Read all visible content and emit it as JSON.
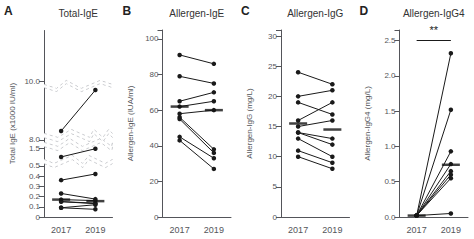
{
  "chart_data": [
    {
      "type": "line",
      "title": "Total-IgE",
      "ylabel": "Total IgE (x1000 IU/ml)",
      "annotations": [
        {
          "text": "A"
        }
      ],
      "categories": [
        "2017",
        "2019"
      ],
      "ylim": [
        0,
        10.5
      ],
      "yticks": [
        0,
        0.1,
        0.2,
        0.3,
        0.4,
        0.5,
        1.5,
        {
          "value": 8,
          "label": "8.0"
        },
        {
          "value": 10,
          "label": "10.0"
        }
      ],
      "grid": false,
      "color": "#1a1a1a",
      "marker": "circle",
      "series": [
        {
          "values": [
            8.5,
            8.9
          ]
        },
        {
          "values": [
            1.42,
            1.5
          ]
        },
        {
          "values": [
            0.36,
            0.42
          ]
        },
        {
          "values": [
            0.23,
            0.175
          ]
        },
        {
          "values": [
            0.17,
            0.16
          ]
        },
        {
          "values": [
            0.15,
            0.135
          ]
        },
        {
          "values": [
            0.15,
            0.13
          ]
        },
        {
          "values": [
            0.09,
            0.12
          ]
        },
        {
          "values": [
            0.09,
            0.075
          ]
        },
        {
          "type": "median",
          "color": "#111111",
          "values": [
            0.17,
            0.155
          ]
        }
      ]
    },
    {
      "type": "line",
      "title": "Allergen-IgE",
      "ylabel": "Allergen-IgE (IUA/ml)",
      "annotations": [
        {
          "text": "B"
        }
      ],
      "categories": [
        "2017",
        "2019"
      ],
      "ylim": [
        0,
        105
      ],
      "yticks": [
        0,
        20,
        40,
        60,
        80,
        100
      ],
      "grid": false,
      "color": "#1a1a1a",
      "marker": "circle",
      "series": [
        {
          "values": [
            91,
            86
          ]
        },
        {
          "values": [
            79,
            75
          ]
        },
        {
          "values": [
            65,
            70
          ]
        },
        {
          "values": [
            62,
            65
          ]
        },
        {
          "values": [
            58,
            60
          ]
        },
        {
          "values": [
            56,
            38
          ]
        },
        {
          "values": [
            55,
            36
          ]
        },
        {
          "values": [
            45,
            33
          ]
        },
        {
          "values": [
            43,
            27
          ]
        },
        {
          "type": "median",
          "color": "#111111",
          "values": [
            62,
            60
          ]
        }
      ]
    },
    {
      "type": "line",
      "title": "Allergen-IgG",
      "ylabel": "Allergen-IgG (mg/L)",
      "annotations": [
        {
          "text": "C"
        }
      ],
      "categories": [
        "2017",
        "2019"
      ],
      "ylim": [
        0,
        31
      ],
      "yticks": [
        0,
        5,
        10,
        15,
        20,
        25,
        30
      ],
      "grid": false,
      "color": "#1a1a1a",
      "marker": "circle",
      "series": [
        {
          "values": [
            24,
            22
          ]
        },
        {
          "values": [
            20,
            21
          ]
        },
        {
          "values": [
            19,
            17
          ]
        },
        {
          "values": [
            16,
            19
          ]
        },
        {
          "values": [
            15,
            16
          ]
        },
        {
          "values": [
            14,
            13
          ]
        },
        {
          "values": [
            14,
            12
          ]
        },
        {
          "values": [
            13,
            10
          ]
        },
        {
          "values": [
            11,
            9
          ]
        },
        {
          "values": [
            10,
            8
          ]
        },
        {
          "type": "median",
          "color": "#111111",
          "values": [
            15.5,
            14.5
          ]
        }
      ]
    },
    {
      "type": "line",
      "title": "Allergen-IgG4",
      "ylabel": "Allergen-IgG4 (mg/L)",
      "annotations": [
        {
          "text": "D"
        },
        {
          "text": "**",
          "y": 2.5
        }
      ],
      "categories": [
        "2017",
        "2019"
      ],
      "ylim": [
        0,
        2.65
      ],
      "yticks": [
        {
          "value": 0,
          "label": "0.0"
        },
        0.5,
        {
          "value": 1,
          "label": "1.0"
        },
        1.5,
        {
          "value": 2,
          "label": "2.0"
        },
        2.5
      ],
      "grid": false,
      "color": "#1a1a1a",
      "marker": "circle",
      "series": [
        {
          "values": [
            0.02,
            2.32
          ]
        },
        {
          "values": [
            0.02,
            1.52
          ]
        },
        {
          "values": [
            0.02,
            0.93
          ]
        },
        {
          "values": [
            0.02,
            0.75
          ]
        },
        {
          "values": [
            0.02,
            0.65
          ]
        },
        {
          "values": [
            0.02,
            0.6
          ]
        },
        {
          "values": [
            0.02,
            0.55
          ]
        },
        {
          "values": [
            0.02,
            0.05
          ]
        },
        {
          "type": "median",
          "color": "#111111",
          "values": [
            0.02,
            0.74
          ]
        }
      ]
    }
  ]
}
